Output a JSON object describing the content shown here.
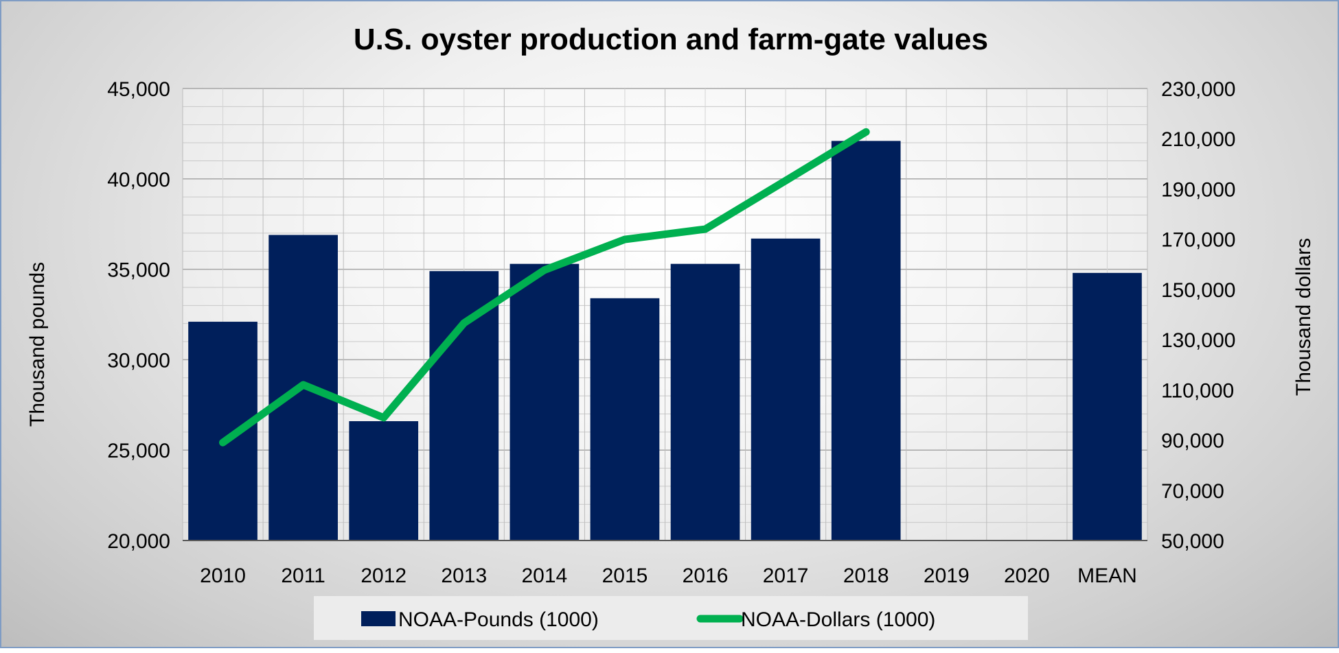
{
  "chart_data": {
    "type": "bar+line",
    "title": "U.S. oyster production and farm-gate values",
    "categories": [
      "2010",
      "2011",
      "2012",
      "2013",
      "2014",
      "2015",
      "2016",
      "2017",
      "2018",
      "2019",
      "2020",
      "MEAN"
    ],
    "series": [
      {
        "name": "NOAA-Pounds (1000)",
        "type": "bar",
        "axis": "left",
        "color": "#001f5b",
        "values": [
          32100,
          36900,
          26600,
          34900,
          35300,
          33400,
          35300,
          36700,
          42100,
          null,
          null,
          34800
        ]
      },
      {
        "name": "NOAA-Dollars (1000)",
        "type": "line",
        "axis": "right",
        "color": "#00b050",
        "values": [
          89000,
          112000,
          98900,
          136600,
          157700,
          169900,
          174000,
          193300,
          212700,
          null,
          null,
          null
        ]
      }
    ],
    "ylabel": "Thousand pounds",
    "y2label": "Thousand dollars",
    "ylim": [
      20000,
      45000
    ],
    "y2lim": [
      50000,
      230000
    ],
    "yticks": [
      "20,000",
      "25,000",
      "30,000",
      "35,000",
      "40,000",
      "45,000"
    ],
    "y2ticks": [
      "50,000",
      "70,000",
      "90,000",
      "110,000",
      "130,000",
      "150,000",
      "170,000",
      "190,000",
      "210,000",
      "230,000"
    ],
    "grid": true,
    "legend": "bottom"
  }
}
